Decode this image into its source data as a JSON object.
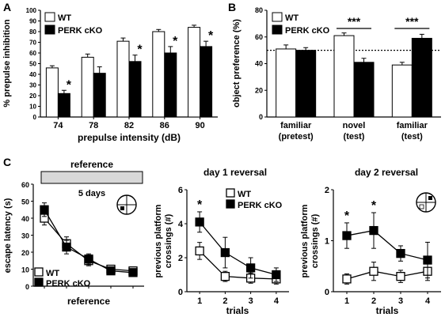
{
  "chart_data": [
    {
      "panel": "A",
      "type": "bar",
      "ylabel": "% prepulse inhibition",
      "xlabel": "prepulse intensity (dB)",
      "categories": [
        "74",
        "78",
        "82",
        "86",
        "90"
      ],
      "ylim": [
        0,
        100
      ],
      "yticks": [
        "0",
        "10",
        "20",
        "30",
        "40",
        "50",
        "60",
        "70",
        "80",
        "90",
        "100"
      ],
      "legend_position": "top-left",
      "series": [
        {
          "name": "WT",
          "fill": "#ffffff",
          "values": [
            46,
            56,
            71,
            80,
            84
          ],
          "errors": [
            2,
            3,
            3,
            2,
            2
          ]
        },
        {
          "name": "PERK cKO",
          "fill": "#000000",
          "values": [
            22,
            41,
            52,
            60,
            66
          ],
          "errors": [
            3,
            6,
            6,
            6,
            5
          ]
        }
      ],
      "annotations": [
        {
          "text": "*",
          "category": "74"
        },
        {
          "text": "*",
          "category": "82"
        },
        {
          "text": "*",
          "category": "86"
        },
        {
          "text": "*",
          "category": "90"
        }
      ]
    },
    {
      "panel": "B",
      "type": "bar",
      "ylabel": "object preference (%)",
      "xlabel": "",
      "categories": [
        "familiar\n(pretest)",
        "novel\n(test)",
        "familiar\n(test)"
      ],
      "ylim": [
        0,
        80
      ],
      "yticks": [
        "0",
        "20",
        "40",
        "60",
        "80"
      ],
      "reference_line": 50,
      "legend_position": "top-left",
      "series": [
        {
          "name": "WT",
          "fill": "#ffffff",
          "values": [
            51,
            61,
            39
          ],
          "errors": [
            3,
            2,
            2
          ]
        },
        {
          "name": "PERK cKO",
          "fill": "#000000",
          "values": [
            50,
            41,
            59
          ],
          "errors": [
            2,
            3,
            3
          ]
        }
      ],
      "annotations": [
        {
          "text": "***",
          "category": "novel\n(test)"
        },
        {
          "text": "***",
          "category": "familiar\n(test)"
        }
      ]
    },
    {
      "panel": "C",
      "type": "line",
      "ylabel": "escape latency (s)",
      "xlabel": "reference",
      "x": [
        1,
        2,
        3,
        4,
        5
      ],
      "ylim": [
        0,
        60
      ],
      "yticks": [
        "0",
        "10",
        "20",
        "30",
        "40",
        "50",
        "60"
      ],
      "header_box": "reference",
      "header_note": "5 days",
      "legend_position": "bottom-left",
      "series": [
        {
          "name": "WT",
          "marker": "open-square",
          "values": [
            40,
            25,
            15,
            10,
            9
          ],
          "errors": [
            4,
            4,
            3,
            2,
            1
          ]
        },
        {
          "name": "PERK cKO",
          "marker": "filled-square",
          "values": [
            45,
            23,
            16,
            9,
            8
          ],
          "errors": [
            4,
            4,
            3,
            2,
            2
          ]
        }
      ]
    },
    {
      "panel": "C-day1",
      "type": "line",
      "title": "day 1 reversal",
      "ylabel": "previous platform\ncrossings (#)",
      "xlabel": "trials",
      "x": [
        1,
        2,
        3,
        4
      ],
      "xticks": [
        "1",
        "2",
        "3",
        "4"
      ],
      "ylim": [
        0,
        6
      ],
      "yticks": [
        "0",
        "2",
        "4",
        "6"
      ],
      "legend_position": "top-right",
      "series": [
        {
          "name": "WT",
          "marker": "open-square",
          "values": [
            2.4,
            0.9,
            0.8,
            0.75
          ],
          "errors": [
            0.5,
            0.3,
            0.3,
            0.3
          ]
        },
        {
          "name": "PERK cKO",
          "marker": "filled-square",
          "values": [
            4.1,
            2.3,
            1.4,
            1.0
          ],
          "errors": [
            0.6,
            0.9,
            0.6,
            0.4
          ]
        }
      ],
      "annotations": [
        {
          "text": "*",
          "x": 1
        }
      ]
    },
    {
      "panel": "C-day2",
      "type": "line",
      "title": "day 2 reversal",
      "ylabel": "previous platform\ncrossings (#)",
      "xlabel": "trials",
      "x": [
        1,
        2,
        3,
        4
      ],
      "xticks": [
        "1",
        "2",
        "3",
        "4"
      ],
      "ylim": [
        0,
        2
      ],
      "yticks": [
        "0",
        "1",
        "2"
      ],
      "series": [
        {
          "name": "WT",
          "marker": "open-square",
          "values": [
            0.25,
            0.4,
            0.3,
            0.4
          ],
          "errors": [
            0.1,
            0.18,
            0.12,
            0.18
          ]
        },
        {
          "name": "PERK cKO",
          "marker": "filled-square",
          "values": [
            1.1,
            1.2,
            0.75,
            0.62
          ],
          "errors": [
            0.25,
            0.35,
            0.15,
            0.35
          ]
        }
      ],
      "annotations": [
        {
          "text": "*",
          "x": 1
        },
        {
          "text": "*",
          "x": 2
        }
      ]
    }
  ],
  "panel_letters": [
    "A",
    "B",
    "C"
  ],
  "icons": {
    "maze_platform_icon": "maze-quadrant-with-platform",
    "maze_reversal_icon": "maze-quadrant-reversal"
  }
}
